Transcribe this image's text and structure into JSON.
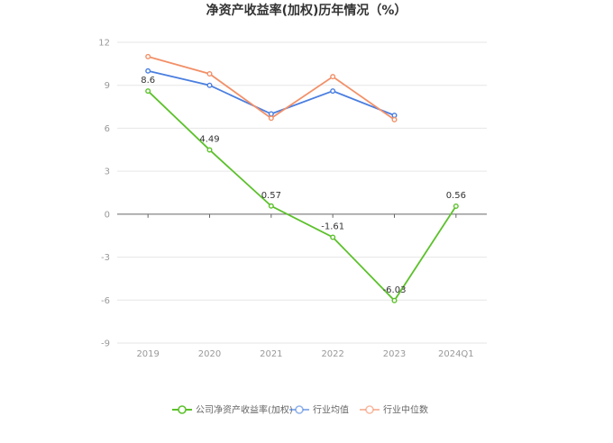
{
  "chart_data": {
    "type": "line",
    "title": "净资产收益率(加权)历年情况（%）",
    "categories": [
      "2019",
      "2020",
      "2021",
      "2022",
      "2023",
      "2024Q1"
    ],
    "ylim": [
      -9,
      12
    ],
    "yticks": [
      12,
      9,
      6,
      3,
      0,
      -3,
      -6,
      -9
    ],
    "grid": true,
    "legend_position": "bottom-center",
    "series": [
      {
        "name": "公司净资产收益率(加权)",
        "color": "#5cc12b",
        "values": [
          8.6,
          4.49,
          0.57,
          -1.61,
          -6.03,
          0.56
        ],
        "labels": [
          "8.6",
          "4.49",
          "0.57",
          "-1.61",
          "-6.03",
          "0.56"
        ]
      },
      {
        "name": "行业均值",
        "color": "#4a7ee0",
        "values": [
          10.0,
          9.0,
          7.0,
          8.6,
          6.9,
          null
        ]
      },
      {
        "name": "行业中位数",
        "color": "#f29068",
        "values": [
          11.0,
          9.8,
          6.7,
          9.6,
          6.6,
          null
        ]
      }
    ]
  }
}
